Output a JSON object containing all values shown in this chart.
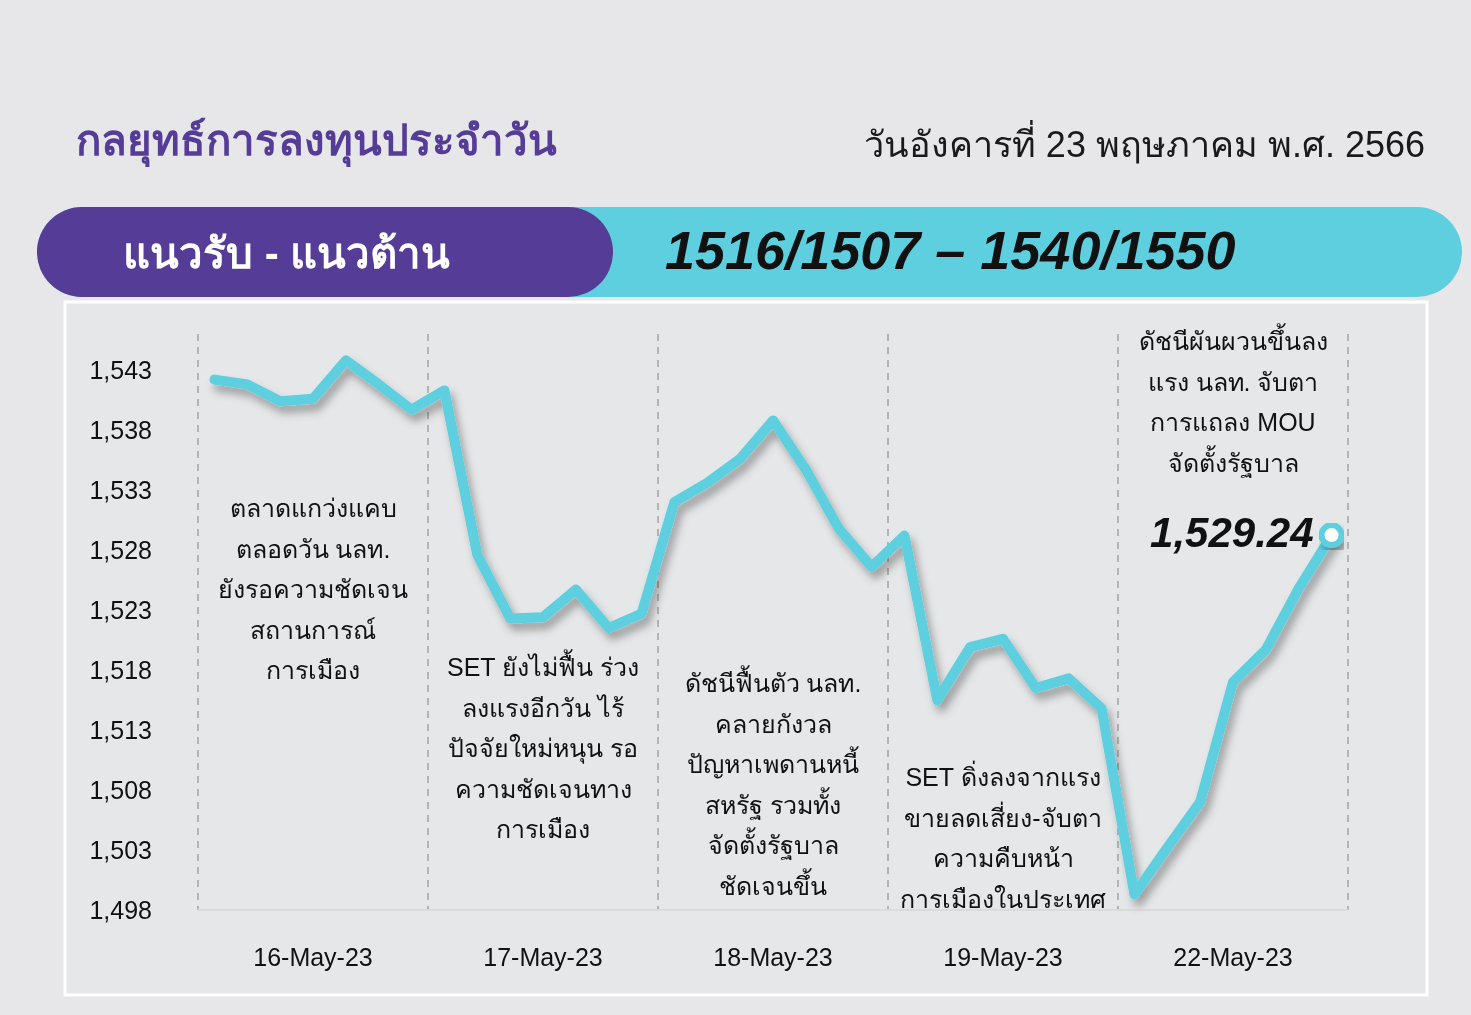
{
  "chart_data": {
    "type": "line",
    "title": "กลยุทธ์การลงทุนประจำวัน",
    "subtitle": "วันอังคารที่ 23 พฤษภาคม พ.ศ. 2566",
    "annotations": [
      "แนวรับ - แนวต้าน",
      "1516/1507 – 1540/1550",
      "ตลาดแกว่งแคบ\nตลอดวัน นลท.\nยังรอความชัดเจน\nสถานการณ์\nการเมือง",
      "SET ยังไม่ฟื้น ร่วง\nลงแรงอีกวัน ไร้\nปัจจัยใหม่หนุน รอ\nความชัดเจนทาง\nการเมือง",
      "ดัชนีฟื้นตัว นลท.\nคลายกังวล\nปัญหาเพดานหนี้\nสหรัฐ รวมทั้ง\nจัดตั้งรัฐบาล\nชัดเจนขึ้น",
      "SET ดิ่งลงจากแรง\nขายลดเสี่ยง-จับตา\nความคืบหน้า\nการเมืองในประเทศ",
      "ดัชนีผันผวนขึ้นลง\nแรง นลท. จับตา\nการแถลง MOU\nจัดตั้งรัฐบาล"
    ],
    "categories": [
      null,
      null,
      null,
      "16-May-23",
      null,
      null,
      null,
      null,
      null,
      null,
      "17-May-23",
      null,
      null,
      null,
      null,
      null,
      null,
      "18-May-23",
      null,
      null,
      null,
      null,
      null,
      null,
      "19-May-23",
      null,
      null,
      null,
      null,
      null,
      null,
      "22-May-23",
      null,
      null,
      null
    ],
    "ylim": [
      1498,
      1546
    ],
    "yticks": [
      {
        "value": 1498,
        "label": "1,498"
      },
      {
        "value": 1503,
        "label": "1,503"
      },
      {
        "value": 1508,
        "label": "1,508"
      },
      {
        "value": 1513,
        "label": "1,513"
      },
      {
        "value": 1518,
        "label": "1,518"
      },
      {
        "value": 1523,
        "label": "1,523"
      },
      {
        "value": 1528,
        "label": "1,528"
      },
      {
        "value": 1533,
        "label": "1,533"
      },
      {
        "value": 1538,
        "label": "1,538"
      },
      {
        "value": 1543,
        "label": "1,543"
      }
    ],
    "series": [
      {
        "color": "#5dcfdf",
        "values": [
          1542.2,
          1541.8,
          1540.4,
          1540.6,
          1543.8,
          1541.8,
          1539.7,
          1541.3,
          1527.6,
          1522.3,
          1522.4,
          1524.7,
          1521.5,
          1522.7,
          1532.0,
          1533.6,
          1535.6,
          1538.8,
          1534.7,
          1529.8,
          1526.6,
          1529.2,
          1515.5,
          1519.9,
          1520.6,
          1516.5,
          1517.3,
          1514.8,
          1499.3,
          1503.2,
          1507.0,
          1517.0,
          1519.7,
          1524.8,
          1529.2
        ]
      },
      {
        "type": "scatter",
        "color": "#5dcfdf",
        "marker": "circle",
        "values": [
          null,
          null,
          null,
          null,
          null,
          null,
          null,
          null,
          null,
          null,
          null,
          null,
          null,
          null,
          null,
          null,
          null,
          null,
          null,
          null,
          null,
          null,
          null,
          null,
          null,
          null,
          null,
          null,
          null,
          null,
          null,
          null,
          null,
          null,
          1529.24
        ],
        "value_labels": [
          null,
          null,
          null,
          null,
          null,
          null,
          null,
          null,
          null,
          null,
          null,
          null,
          null,
          null,
          null,
          null,
          null,
          null,
          null,
          null,
          null,
          null,
          null,
          null,
          null,
          null,
          null,
          null,
          null,
          null,
          null,
          null,
          null,
          null,
          "1,529.24"
        ]
      }
    ]
  }
}
